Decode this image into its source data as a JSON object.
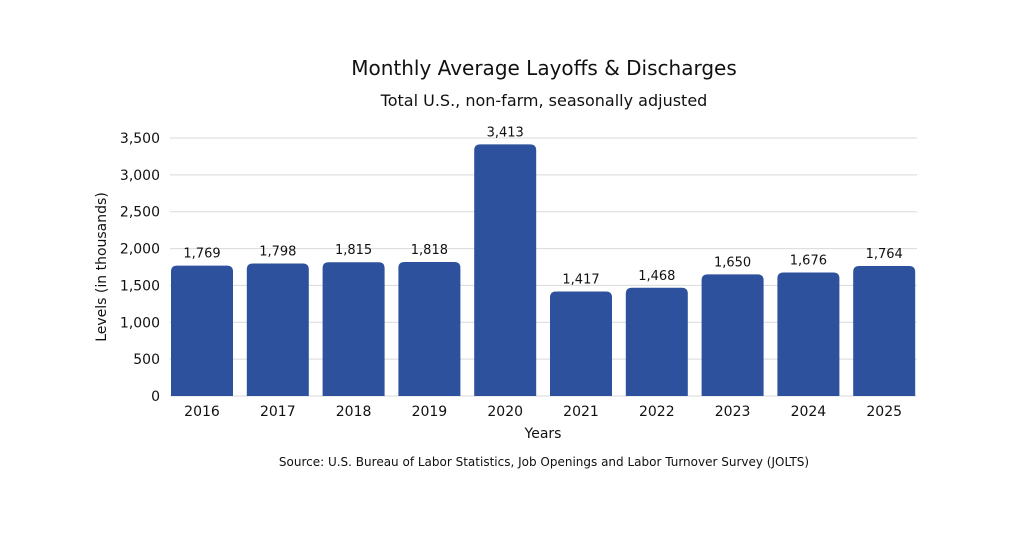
{
  "chart_data": {
    "type": "bar",
    "title": "Monthly Average Layoffs & Discharges",
    "subtitle": "Total U.S., non-farm, seasonally adjusted",
    "xlabel": "Years",
    "ylabel": "Levels (in thousands)",
    "source": "Source: U.S. Bureau of Labor Statistics, Job Openings and Labor Turnover Survey (JOLTS)",
    "categories": [
      "2016",
      "2017",
      "2018",
      "2019",
      "2020",
      "2021",
      "2022",
      "2023",
      "2024",
      "2025"
    ],
    "values": [
      1769,
      1798,
      1815,
      1818,
      3413,
      1417,
      1468,
      1650,
      1676,
      1764
    ],
    "data_labels": [
      "1,769",
      "1,798",
      "1,815",
      "1,818",
      "3,413",
      "1,417",
      "1,468",
      "1,650",
      "1,676",
      "1,764"
    ],
    "yticks": [
      0,
      500,
      1000,
      1500,
      2000,
      2500,
      3000,
      3500
    ],
    "ytick_labels": [
      "0",
      "500",
      "1,000",
      "1,500",
      "2,000",
      "2,500",
      "3,000",
      "3,500"
    ],
    "ylim": [
      0,
      3500
    ],
    "grid": true,
    "legend": "none",
    "bar_color": "#2d519c",
    "grid_color": "#d9d9d9"
  }
}
